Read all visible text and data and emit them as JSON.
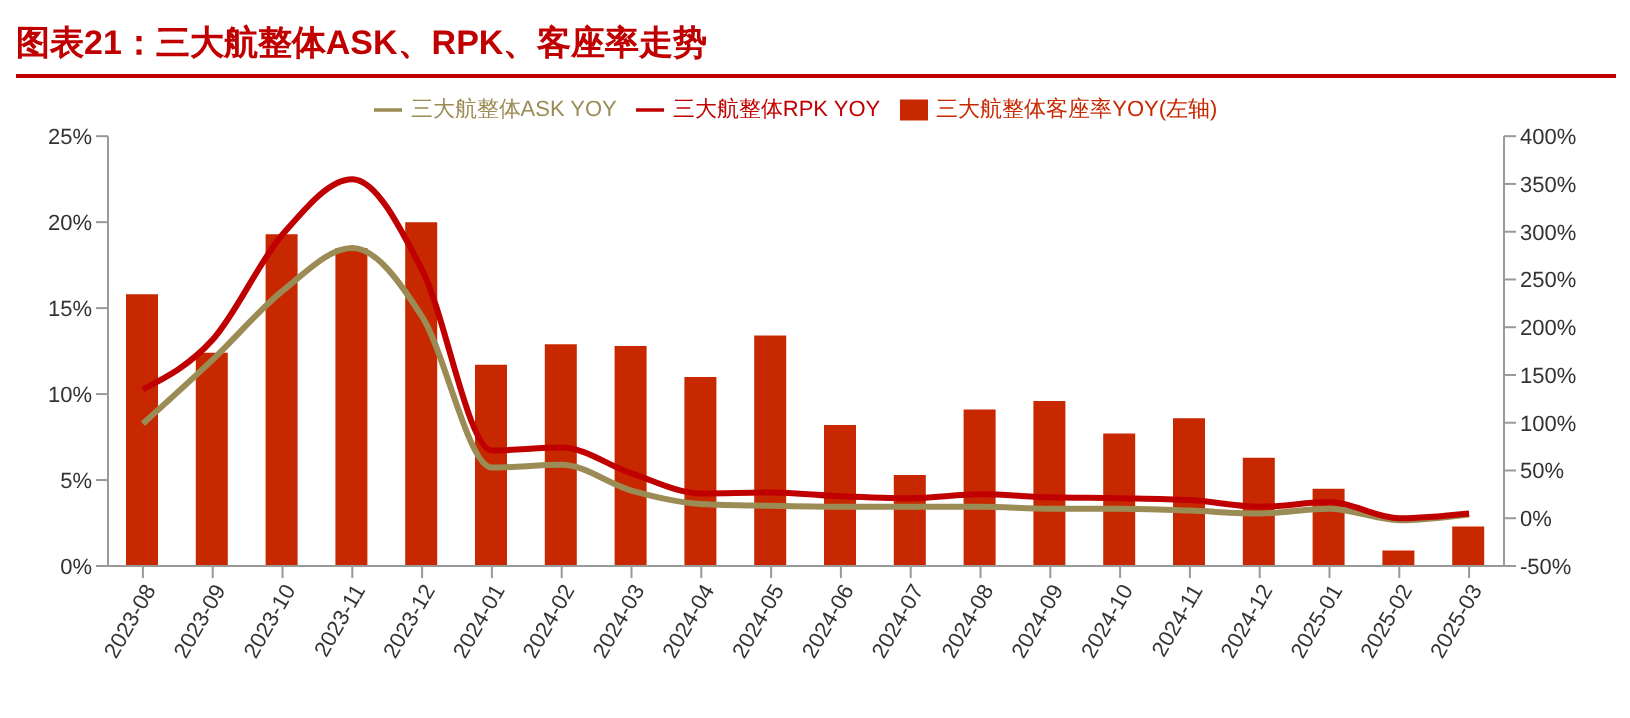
{
  "chart_data": {
    "type": "bar",
    "title": "图表21：三大航整体ASK、RPK、客座率走势",
    "categories": [
      "2023-08",
      "2023-09",
      "2023-10",
      "2023-11",
      "2023-12",
      "2024-01",
      "2024-02",
      "2024-03",
      "2024-04",
      "2024-05",
      "2024-06",
      "2024-07",
      "2024-08",
      "2024-09",
      "2024-10",
      "2024-11",
      "2024-12",
      "2025-01",
      "2025-02",
      "2025-03"
    ],
    "series": [
      {
        "name": "三大航整体客座率YOY(左轴)",
        "color": "#c82800",
        "values": [
          15.8,
          12.4,
          19.3,
          18.5,
          20.0,
          11.7,
          12.9,
          12.8,
          11.0,
          13.4,
          8.2,
          5.3,
          9.1,
          9.6,
          7.7,
          8.6,
          6.3,
          4.5,
          0.9,
          2.3
        ]
      },
      {
        "name": "三大航整体ASK YOY",
        "type": "line",
        "axis": "y2",
        "color": "#9b8b55",
        "values": [
          99,
          166,
          238,
          283,
          211,
          53,
          56,
          29,
          15,
          13,
          12,
          12,
          12,
          10,
          10,
          8,
          5,
          10,
          -2,
          4
        ]
      },
      {
        "name": "三大航整体RPK YOY",
        "type": "line",
        "axis": "y2",
        "color": "#c00000",
        "values": [
          135,
          187,
          297,
          355,
          260,
          71,
          74,
          47,
          26,
          27,
          23,
          21,
          25,
          22,
          21,
          19,
          12,
          17,
          0,
          5
        ]
      }
    ],
    "ylim": [
      0,
      25
    ],
    "yticks": [
      {
        "value": 0,
        "label": "0%"
      },
      {
        "value": 5,
        "label": "5%"
      },
      {
        "value": 10,
        "label": "10%"
      },
      {
        "value": 15,
        "label": "15%"
      },
      {
        "value": 20,
        "label": "20%"
      },
      {
        "value": 25,
        "label": "25%"
      }
    ],
    "y2lim": [
      -50,
      400
    ],
    "y2ticks": [
      {
        "value": -50,
        "label": "-50%"
      },
      {
        "value": 0,
        "label": "0%"
      },
      {
        "value": 50,
        "label": "50%"
      },
      {
        "value": 100,
        "label": "100%"
      },
      {
        "value": 150,
        "label": "150%"
      },
      {
        "value": 200,
        "label": "200%"
      },
      {
        "value": 250,
        "label": "250%"
      },
      {
        "value": 300,
        "label": "300%"
      },
      {
        "value": 350,
        "label": "350%"
      },
      {
        "value": 400,
        "label": "400%"
      }
    ],
    "legend": "top",
    "grid": false,
    "marker": "none",
    "line_style": "solid"
  }
}
